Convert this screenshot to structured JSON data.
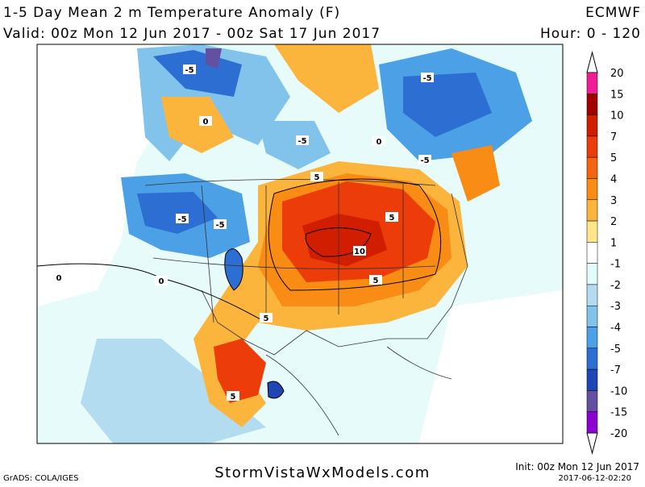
{
  "header": {
    "title": "1-5 Day Mean 2 m Temperature Anomaly (F)",
    "model": "ECMWF",
    "valid": "Valid: 00z Mon 12 Jun 2017 - 00z Sat 17 Jun 2017",
    "hour": "Hour: 0 - 120"
  },
  "colorbar": {
    "labels": [
      20,
      15,
      10,
      7,
      5,
      4,
      3,
      2,
      1,
      -1,
      -2,
      -3,
      -4,
      -5,
      -7,
      -10,
      -15,
      -20
    ],
    "colors": [
      "#f01e96",
      "#a00000",
      "#d21e00",
      "#eb3c0a",
      "#f5640f",
      "#f88c14",
      "#fbb43c",
      "#ffe68c",
      "#ffffff",
      "#e1fafa",
      "#b4dcf0",
      "#82c3eb",
      "#4ba0e6",
      "#2d6ed2",
      "#1e46b4",
      "#6450a0",
      "#8c00d2"
    ]
  },
  "map": {
    "contour_labels": [
      "-5",
      "-5",
      "-5",
      "-5",
      "5",
      "-5",
      "-5",
      "5",
      "10",
      "5",
      "5",
      "5",
      "0",
      "0",
      "0",
      "0"
    ]
  },
  "footer": {
    "credit": "GrADS: COLA/IGES",
    "site": "StormVistaWxModels.com",
    "init": "Init: 00z Mon 12 Jun 2017",
    "stamp": "2017-06-12-02:20"
  }
}
